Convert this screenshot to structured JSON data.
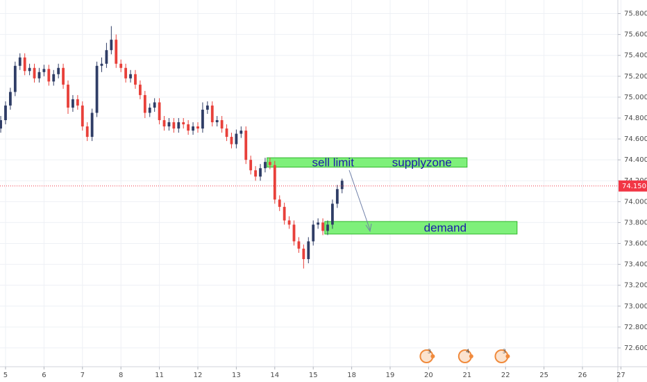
{
  "chart_data": {
    "type": "candlestick",
    "up_color": "#2f3d66",
    "down_color": "#e8403a",
    "grid": true,
    "xlim": [
      -0.144,
      15.92
    ],
    "ylim": [
      72.42,
      75.93
    ],
    "xticks": [
      {
        "value": 0,
        "label": "5"
      },
      {
        "value": 1,
        "label": "6"
      },
      {
        "value": 2,
        "label": "7"
      },
      {
        "value": 3,
        "label": "8"
      },
      {
        "value": 4,
        "label": "11"
      },
      {
        "value": 5,
        "label": "12"
      },
      {
        "value": 6,
        "label": "13"
      },
      {
        "value": 7,
        "label": "14"
      },
      {
        "value": 8,
        "label": "15"
      },
      {
        "value": 9,
        "label": "18"
      },
      {
        "value": 10,
        "label": "19"
      },
      {
        "value": 11,
        "label": "20"
      },
      {
        "value": 12,
        "label": "21"
      },
      {
        "value": 13,
        "label": "22"
      },
      {
        "value": 14,
        "label": "25"
      },
      {
        "value": 15,
        "label": "26"
      },
      {
        "value": 16,
        "label": "27"
      }
    ],
    "yticks": [
      {
        "value": 72.6,
        "label": "72.600"
      },
      {
        "value": 72.8,
        "label": "72.800"
      },
      {
        "value": 73.0,
        "label": "73.000"
      },
      {
        "value": 73.2,
        "label": "73.200"
      },
      {
        "value": 73.4,
        "label": "73.400"
      },
      {
        "value": 73.6,
        "label": "73.600"
      },
      {
        "value": 73.8,
        "label": "73.800"
      },
      {
        "value": 74.0,
        "label": "74.000"
      },
      {
        "value": 74.2,
        "label": "74.200"
      },
      {
        "value": 74.4,
        "label": "74.400"
      },
      {
        "value": 74.6,
        "label": "74.600"
      },
      {
        "value": 74.8,
        "label": "74.800"
      },
      {
        "value": 75.0,
        "label": "75.000"
      },
      {
        "value": 75.2,
        "label": "75.200"
      },
      {
        "value": 75.4,
        "label": "75.400"
      },
      {
        "value": 75.6,
        "label": "75.600"
      },
      {
        "value": 75.8,
        "label": "75.800"
      }
    ],
    "x": [
      -0.125,
      0,
      0.125,
      0.25,
      0.375,
      0.5,
      0.625,
      0.75,
      0.875,
      1,
      1.125,
      1.25,
      1.375,
      1.5,
      1.625,
      1.75,
      1.875,
      2,
      2.125,
      2.25,
      2.375,
      2.5,
      2.625,
      2.75,
      2.875,
      3,
      3.125,
      3.25,
      3.375,
      3.5,
      3.625,
      3.75,
      3.875,
      4,
      4.125,
      4.25,
      4.375,
      4.5,
      4.625,
      4.75,
      4.875,
      5,
      5.125,
      5.25,
      5.375,
      5.5,
      5.625,
      5.75,
      5.875,
      6,
      6.125,
      6.25,
      6.375,
      6.5,
      6.625,
      6.75,
      6.875,
      7,
      7.125,
      7.25,
      7.375,
      7.5,
      7.625,
      7.75,
      7.875,
      8,
      8.125,
      8.25,
      8.375,
      8.5,
      8.625,
      8.75
    ],
    "open": [
      74.7,
      74.78,
      74.92,
      75.05,
      75.3,
      75.38,
      75.25,
      75.28,
      75.18,
      75.24,
      75.27,
      75.15,
      75.22,
      75.28,
      75.12,
      74.9,
      74.98,
      74.92,
      74.72,
      74.62,
      74.85,
      75.3,
      75.32,
      75.45,
      75.55,
      75.32,
      75.28,
      75.18,
      75.22,
      75.12,
      75.02,
      74.85,
      74.9,
      74.95,
      74.78,
      74.72,
      74.76,
      74.7,
      74.76,
      74.74,
      74.68,
      74.72,
      74.7,
      74.88,
      74.92,
      74.76,
      74.78,
      74.7,
      74.62,
      74.55,
      74.65,
      74.68,
      74.4,
      74.3,
      74.24,
      74.32,
      74.38,
      74.35,
      74.02,
      73.95,
      73.82,
      73.78,
      73.62,
      73.55,
      73.45,
      73.62,
      73.78,
      73.8,
      73.72,
      73.78,
      73.98,
      74.12
    ],
    "high": [
      74.82,
      74.96,
      75.09,
      75.34,
      75.42,
      75.42,
      75.32,
      75.32,
      75.28,
      75.31,
      75.31,
      75.26,
      75.32,
      75.32,
      75.16,
      75.02,
      75.02,
      74.96,
      74.76,
      74.89,
      75.34,
      75.38,
      75.52,
      75.68,
      75.6,
      75.36,
      75.32,
      75.26,
      75.26,
      75.16,
      75.06,
      74.94,
      74.99,
      74.99,
      74.82,
      74.8,
      74.8,
      74.8,
      74.8,
      74.78,
      74.76,
      74.76,
      74.95,
      74.96,
      74.96,
      74.82,
      74.82,
      74.74,
      74.66,
      74.69,
      74.72,
      74.72,
      74.44,
      74.34,
      74.36,
      74.42,
      74.42,
      74.39,
      74.06,
      73.99,
      73.86,
      73.82,
      73.66,
      73.59,
      73.66,
      73.82,
      73.84,
      73.84,
      73.82,
      74.02,
      74.16,
      74.22
    ],
    "low": [
      74.66,
      74.74,
      74.88,
      75.01,
      75.26,
      75.21,
      75.21,
      75.14,
      75.14,
      75.2,
      75.11,
      75.11,
      75.18,
      75.08,
      74.84,
      74.86,
      74.88,
      74.68,
      74.58,
      74.58,
      74.81,
      75.24,
      75.28,
      75.41,
      75.28,
      75.24,
      75.14,
      75.14,
      75.08,
      74.98,
      74.8,
      74.81,
      74.86,
      74.74,
      74.68,
      74.68,
      74.66,
      74.66,
      74.7,
      74.64,
      74.64,
      74.66,
      74.66,
      74.84,
      74.72,
      74.72,
      74.66,
      74.58,
      74.51,
      74.51,
      74.61,
      74.36,
      74.26,
      74.2,
      74.2,
      74.28,
      74.31,
      73.98,
      73.91,
      73.78,
      73.74,
      73.58,
      73.51,
      73.36,
      73.41,
      73.58,
      73.74,
      73.68,
      73.68,
      73.74,
      73.94,
      74.08
    ],
    "close": [
      74.78,
      74.92,
      75.05,
      75.3,
      75.38,
      75.25,
      75.28,
      75.18,
      75.24,
      75.27,
      75.15,
      75.22,
      75.28,
      75.12,
      74.9,
      74.98,
      74.92,
      74.72,
      74.62,
      74.85,
      75.3,
      75.32,
      75.45,
      75.55,
      75.32,
      75.28,
      75.18,
      75.22,
      75.12,
      75.02,
      74.85,
      74.9,
      74.95,
      74.78,
      74.72,
      74.76,
      74.7,
      74.76,
      74.74,
      74.68,
      74.72,
      74.7,
      74.88,
      74.92,
      74.76,
      74.78,
      74.7,
      74.62,
      74.55,
      74.65,
      74.68,
      74.4,
      74.3,
      74.24,
      74.32,
      74.38,
      74.35,
      74.02,
      73.95,
      73.82,
      73.78,
      73.62,
      73.55,
      73.45,
      73.62,
      73.78,
      73.8,
      73.72,
      73.78,
      73.98,
      74.12,
      74.2
    ],
    "last_price": {
      "value": 74.15,
      "label": "74.150",
      "color": "#f23645"
    },
    "zones": [
      {
        "name": "supply",
        "x": [
          6.8,
          12.0
        ],
        "y": [
          74.33,
          74.42
        ],
        "color": "#7ef07a",
        "labels": [
          "sell limit",
          "supplyzone"
        ]
      },
      {
        "name": "demand",
        "x": [
          8.3,
          13.3
        ],
        "y": [
          73.69,
          73.81
        ],
        "color": "#7ef07a",
        "labels": [
          "demand"
        ]
      }
    ],
    "events": [
      {
        "x": 11.0,
        "label": "3"
      },
      {
        "x": 12.0,
        "label": "4"
      },
      {
        "x": 12.95,
        "label": "3"
      }
    ]
  }
}
